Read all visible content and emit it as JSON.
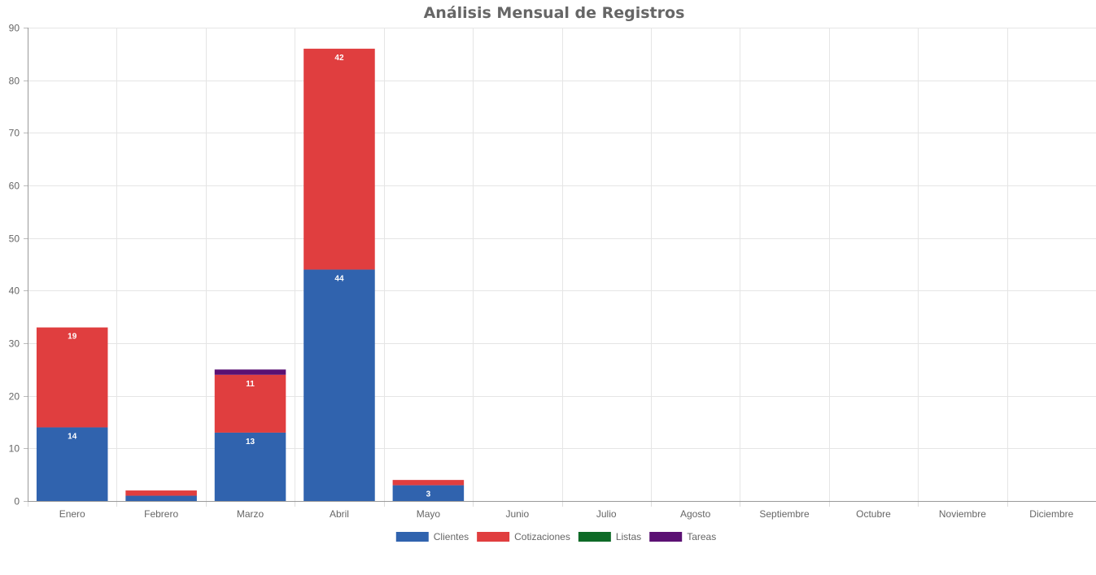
{
  "chart_data": {
    "type": "bar",
    "stacked": true,
    "title": "Análisis Mensual de Registros",
    "categories": [
      "Enero",
      "Febrero",
      "Marzo",
      "Abril",
      "Mayo",
      "Junio",
      "Julio",
      "Agosto",
      "Septiembre",
      "Octubre",
      "Noviembre",
      "Diciembre"
    ],
    "series": [
      {
        "name": "Clientes",
        "color": "#3063AE",
        "values": [
          14,
          1,
          13,
          44,
          3,
          0,
          0,
          0,
          0,
          0,
          0,
          0
        ]
      },
      {
        "name": "Cotizaciones",
        "color": "#E03E3F",
        "values": [
          19,
          1,
          11,
          42,
          1,
          0,
          0,
          0,
          0,
          0,
          0,
          0
        ]
      },
      {
        "name": "Listas",
        "color": "#0E6A27",
        "values": [
          0,
          0,
          0,
          0,
          0,
          0,
          0,
          0,
          0,
          0,
          0,
          0
        ]
      },
      {
        "name": "Tareas",
        "color": "#5B1173",
        "values": [
          0,
          0,
          1,
          0,
          0,
          0,
          0,
          0,
          0,
          0,
          0,
          0
        ]
      }
    ],
    "data_labels": [
      {
        "series": "Clientes",
        "category": "Enero",
        "text": "14"
      },
      {
        "series": "Cotizaciones",
        "category": "Enero",
        "text": "19"
      },
      {
        "series": "Clientes",
        "category": "Marzo",
        "text": "13"
      },
      {
        "series": "Cotizaciones",
        "category": "Marzo",
        "text": "11"
      },
      {
        "series": "Clientes",
        "category": "Abril",
        "text": "44"
      },
      {
        "series": "Cotizaciones",
        "category": "Abril",
        "text": "42"
      },
      {
        "series": "Clientes",
        "category": "Mayo",
        "text": "3"
      }
    ],
    "ylim": [
      0,
      90
    ],
    "yticks": [
      0,
      10,
      20,
      30,
      40,
      50,
      60,
      70,
      80,
      90
    ],
    "grid": true,
    "legend_position": "bottom"
  }
}
